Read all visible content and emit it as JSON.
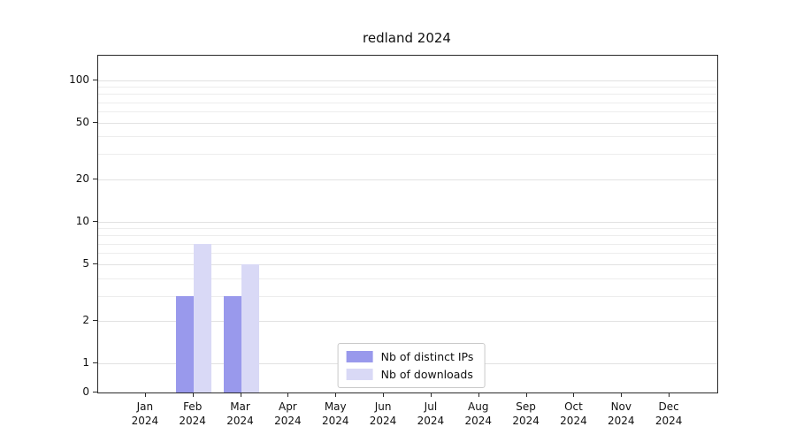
{
  "title": "redland 2024",
  "chart_data": {
    "type": "bar",
    "title": "redland 2024",
    "categories": [
      "Jan",
      "Feb",
      "Mar",
      "Apr",
      "May",
      "Jun",
      "Jul",
      "Aug",
      "Sep",
      "Oct",
      "Nov",
      "Dec"
    ],
    "year": "2024",
    "series": [
      {
        "name": "Nb of distinct IPs",
        "color": "#9999ec",
        "values": [
          0,
          3,
          3,
          0,
          0,
          0,
          0,
          0,
          0,
          0,
          0,
          0
        ]
      },
      {
        "name": "Nb of downloads",
        "color": "#d9d9f6",
        "values": [
          0,
          7,
          5,
          0,
          0,
          0,
          0,
          0,
          0,
          0,
          0,
          0
        ]
      }
    ],
    "y_ticks": [
      0,
      1,
      2,
      5,
      10,
      20,
      50,
      100
    ],
    "y_minor_ticks": [
      3,
      4,
      6,
      7,
      8,
      9,
      30,
      40,
      60,
      70,
      80,
      90
    ],
    "y_scale": "symlog",
    "ylim": [
      0,
      150
    ],
    "grid": "horizontal",
    "legend_position": "lower-center",
    "xlabel": "",
    "ylabel": ""
  }
}
